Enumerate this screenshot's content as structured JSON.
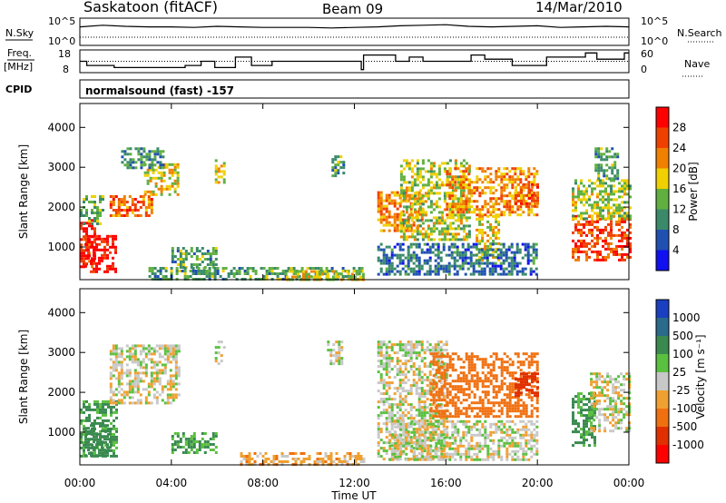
{
  "header": {
    "station": "Saskatoon (fitACF)",
    "beam": "Beam 09",
    "date": "14/Mar/2010"
  },
  "status_panel": {
    "nsky_label": "N.Sky",
    "nsearch_label": "N.Search",
    "nsky_ticks": [
      "10^5",
      "10^0"
    ],
    "nsearch_ticks": [
      "10^5",
      "10^0"
    ],
    "freq_label_line1": "Freq.",
    "freq_label_line2": "[MHz]",
    "freq_ticks": [
      "18",
      "8"
    ],
    "nave_label": "Nave",
    "nave_ticks": [
      "60",
      "0"
    ],
    "cpid_label": "CPID",
    "cpid_value": "normalsound (fast) -157"
  },
  "x_axis": {
    "label": "Time UT",
    "ticks": [
      "00:00",
      "04:00",
      "08:00",
      "12:00",
      "16:00",
      "20:00",
      "00:00"
    ]
  },
  "power_panel": {
    "ylabel": "Slant Range [km]",
    "yticks": [
      "4000",
      "3000",
      "2000",
      "1000"
    ],
    "colorbar_label": "Power [dB]",
    "colorbar_ticks": [
      "28",
      "24",
      "20",
      "16",
      "12",
      "8",
      "4"
    ],
    "colors": [
      "#1010f0",
      "#2050b0",
      "#3a8a6a",
      "#60b040",
      "#f0d000",
      "#f08000",
      "#f04000",
      "#ff0000"
    ]
  },
  "velocity_panel": {
    "ylabel": "Slant Range [km]",
    "yticks": [
      "4000",
      "3000",
      "2000",
      "1000"
    ],
    "colorbar_label": "Velocity [m s⁻¹]",
    "colorbar_ticks": [
      "1000",
      "500",
      "100",
      "25",
      "-25",
      "-100",
      "-500",
      "-1000"
    ],
    "colors": [
      "#1a3fc0",
      "#2a6a8a",
      "#3a8a50",
      "#5ac040",
      "#c8c8c8",
      "#f0a030",
      "#f07010",
      "#e03000",
      "#ff0000"
    ]
  },
  "chart_data": [
    {
      "type": "line",
      "title": "N.Sky / N.Search",
      "x_hours": [
        0,
        1,
        2,
        3,
        4,
        5,
        6,
        7,
        8,
        9,
        10,
        11,
        12,
        13,
        14,
        15,
        16,
        17,
        18,
        19,
        20,
        21,
        22,
        23,
        24
      ],
      "series": [
        {
          "name": "N.Sky",
          "values": [
            1.2,
            1.5,
            1.3,
            1.2,
            1.2,
            1.1,
            1.3,
            1.2,
            1.1,
            1.1,
            1.1,
            1.0,
            1.1,
            1.2,
            1.4,
            1.5,
            1.6,
            1.3,
            1.2,
            1.3,
            1.4,
            1.1,
            1.2,
            1.3,
            1.2
          ]
        },
        {
          "name": "N.Search",
          "values": [
            0.8,
            0.8,
            0.8,
            0.8,
            0.8,
            0.8,
            0.8,
            0.8,
            0.8,
            0.8,
            0.8,
            0.8,
            0.8,
            0.8,
            0.8,
            0.8,
            0.8,
            0.8,
            0.8,
            0.8,
            0.8,
            0.8,
            0.8,
            0.8,
            0.8
          ]
        }
      ],
      "ylim": [
        0,
        5
      ]
    },
    {
      "type": "line",
      "title": "Freq. / Nave",
      "x_hours": [
        0,
        0.3,
        1.5,
        3.6,
        4.6,
        5.3,
        5.9,
        6.8,
        7.5,
        8.4,
        9.0,
        12.3,
        12.4,
        13.8,
        14.4,
        15.0,
        17.1,
        17.7,
        18.9,
        20.4,
        22.1,
        22.6,
        23.8,
        24
      ],
      "series": [
        {
          "name": "Freq.",
          "values": [
            13,
            11,
            10,
            10,
            11,
            13,
            10,
            15,
            11,
            13,
            13,
            9,
            16,
            13,
            15,
            13,
            16,
            14,
            11,
            15,
            17,
            14,
            17,
            17
          ]
        },
        {
          "name": "Nave",
          "values": [
            30,
            30,
            30,
            30,
            30,
            30,
            30,
            30,
            30,
            30,
            30,
            30,
            30,
            30,
            30,
            30,
            30,
            30,
            30,
            30,
            30,
            30,
            30,
            30
          ]
        }
      ],
      "ylim_freq": [
        8,
        18
      ],
      "ylim_nave": [
        0,
        60
      ]
    },
    {
      "type": "heatmap",
      "title": "Power [dB]",
      "x_range_hours": [
        0,
        24
      ],
      "y_range_km": [
        180,
        4600
      ],
      "value_range": [
        0,
        30
      ],
      "regions": [
        {
          "t0": 0.0,
          "t1": 0.6,
          "r0": 500,
          "r1": 1700,
          "value": 28
        },
        {
          "t0": 0.2,
          "t1": 1.6,
          "r0": 350,
          "r1": 1300,
          "value": 30
        },
        {
          "t0": 0.0,
          "t1": 1.0,
          "r0": 1600,
          "r1": 2300,
          "value": 14
        },
        {
          "t0": 1.3,
          "t1": 3.2,
          "r0": 1800,
          "r1": 2300,
          "value": 24
        },
        {
          "t0": 2.8,
          "t1": 4.3,
          "r0": 2300,
          "r1": 3100,
          "value": 18
        },
        {
          "t0": 1.8,
          "t1": 3.6,
          "r0": 3000,
          "r1": 3500,
          "value": 10
        },
        {
          "t0": 5.9,
          "t1": 6.3,
          "r0": 2600,
          "r1": 3200,
          "value": 18
        },
        {
          "t0": 4.0,
          "t1": 6.0,
          "r0": 500,
          "r1": 1000,
          "value": 12
        },
        {
          "t0": 3.0,
          "t1": 12.4,
          "r0": 200,
          "r1": 500,
          "value": 12
        },
        {
          "t0": 9.0,
          "t1": 12.4,
          "r0": 200,
          "r1": 420,
          "value": 18
        },
        {
          "t0": 11.0,
          "t1": 11.5,
          "r0": 2800,
          "r1": 3300,
          "value": 12
        },
        {
          "t0": 13.0,
          "t1": 15.0,
          "r0": 1400,
          "r1": 2400,
          "value": 22
        },
        {
          "t0": 14.0,
          "t1": 17.0,
          "r0": 1200,
          "r1": 3200,
          "value": 16
        },
        {
          "t0": 16.0,
          "t1": 20.0,
          "r0": 1800,
          "r1": 3000,
          "value": 22
        },
        {
          "t0": 17.3,
          "t1": 18.3,
          "r0": 700,
          "r1": 1800,
          "value": 18
        },
        {
          "t0": 13.0,
          "t1": 20.0,
          "r0": 300,
          "r1": 1100,
          "value": 8
        },
        {
          "t0": 19.0,
          "t1": 20.0,
          "r0": 2000,
          "r1": 2600,
          "value": 24
        },
        {
          "t0": 21.5,
          "t1": 24.0,
          "r0": 700,
          "r1": 1800,
          "value": 26
        },
        {
          "t0": 21.5,
          "t1": 24.0,
          "r0": 1700,
          "r1": 2700,
          "value": 16
        },
        {
          "t0": 22.5,
          "t1": 23.5,
          "r0": 2700,
          "r1": 3500,
          "value": 12
        }
      ]
    },
    {
      "type": "heatmap",
      "title": "Velocity [m s-1]",
      "x_range_hours": [
        0,
        24
      ],
      "y_range_km": [
        180,
        4600
      ],
      "value_range": [
        -1000,
        1000
      ],
      "regions": [
        {
          "t0": 0.0,
          "t1": 1.6,
          "r0": 400,
          "r1": 1800,
          "value": 120
        },
        {
          "t0": 0.2,
          "t1": 1.3,
          "r0": 400,
          "r1": 1200,
          "value": 400
        },
        {
          "t0": 1.3,
          "t1": 4.3,
          "r0": 1700,
          "r1": 3200,
          "value": 0
        },
        {
          "t0": 5.9,
          "t1": 6.3,
          "r0": 2700,
          "r1": 3300,
          "value": 0
        },
        {
          "t0": 4.0,
          "t1": 6.0,
          "r0": 500,
          "r1": 1000,
          "value": 90
        },
        {
          "t0": 7.0,
          "t1": 12.4,
          "r0": 200,
          "r1": 500,
          "value": -60
        },
        {
          "t0": 10.8,
          "t1": 11.5,
          "r0": 2700,
          "r1": 3300,
          "value": 0
        },
        {
          "t0": 13.0,
          "t1": 16.0,
          "r0": 300,
          "r1": 3300,
          "value": 0
        },
        {
          "t0": 15.3,
          "t1": 20.0,
          "r0": 1400,
          "r1": 3000,
          "value": -200
        },
        {
          "t0": 19.0,
          "t1": 20.0,
          "r0": 1900,
          "r1": 2500,
          "value": -800
        },
        {
          "t0": 13.5,
          "t1": 20.0,
          "r0": 300,
          "r1": 1300,
          "value": 0
        },
        {
          "t0": 21.5,
          "t1": 22.5,
          "r0": 700,
          "r1": 2000,
          "value": 120
        },
        {
          "t0": 22.3,
          "t1": 24.0,
          "r0": 1000,
          "r1": 2500,
          "value": 0
        }
      ]
    }
  ]
}
